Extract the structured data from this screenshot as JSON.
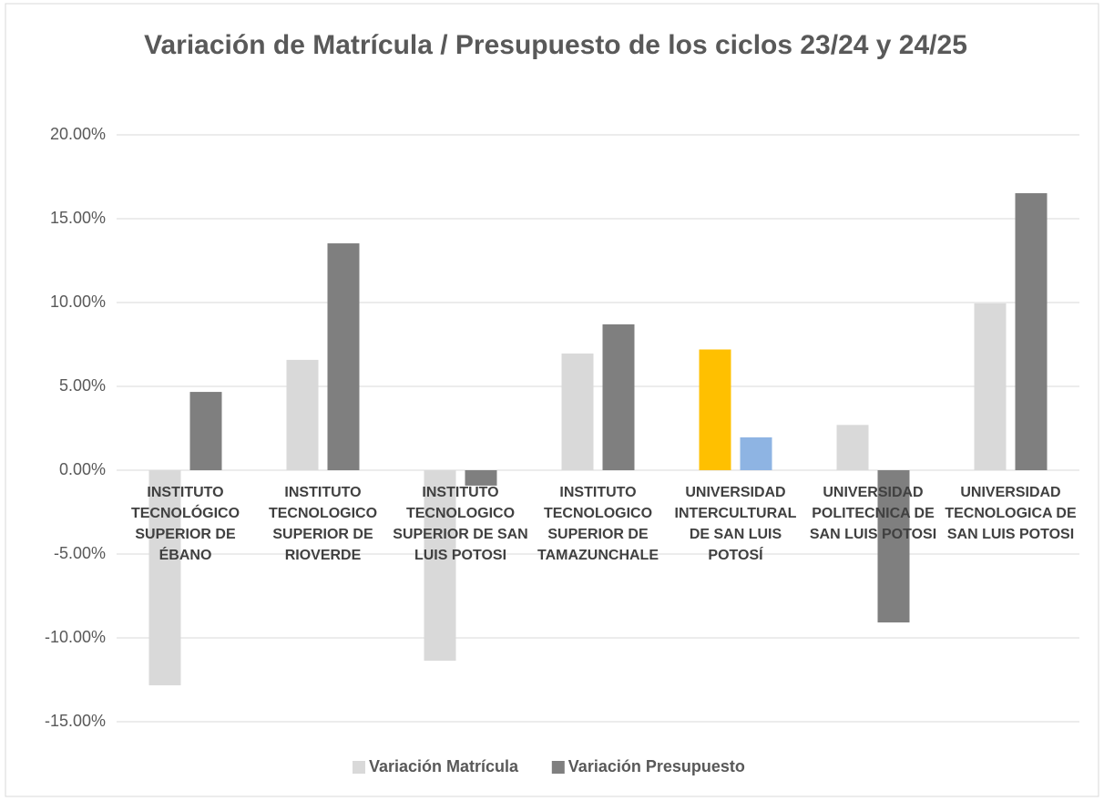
{
  "chart_data": {
    "type": "bar",
    "title": "Variación de Matrícula / Presupuesto de los ciclos 23/24 y 24/25",
    "categories": [
      "INSTITUTO TECNOLÓGICO SUPERIOR DE ÉBANO",
      "INSTITUTO TECNOLOGICO SUPERIOR DE RIOVERDE",
      "INSTITUTO TECNOLOGICO SUPERIOR DE SAN LUIS POTOSI",
      "INSTITUTO TECNOLOGICO SUPERIOR DE TAMAZUNCHALE",
      "UNIVERSIDAD INTERCULTURAL DE SAN LUIS POTOSÍ",
      "UNIVERSIDAD POLITECNICA DE SAN LUIS POTOSI",
      "UNIVERSIDAD TECNOLOGICA DE SAN LUIS POTOSI"
    ],
    "series": [
      {
        "name": "Variación Matrícula",
        "color": "#d9d9d9",
        "colors": [
          "#d9d9d9",
          "#d9d9d9",
          "#d9d9d9",
          "#d9d9d9",
          "#ffc000",
          "#d9d9d9",
          "#d9d9d9"
        ],
        "values": [
          -12.83,
          6.58,
          -11.36,
          6.96,
          7.2,
          2.7,
          9.95
        ]
      },
      {
        "name": "Variación Presupuesto",
        "color": "#7f7f7f",
        "colors": [
          "#7f7f7f",
          "#7f7f7f",
          "#7f7f7f",
          "#7f7f7f",
          "#8eb4e3",
          "#7f7f7f",
          "#7f7f7f"
        ],
        "values": [
          4.67,
          13.53,
          -0.92,
          8.7,
          1.96,
          -9.08,
          16.52
        ]
      }
    ],
    "ylim": [
      -15,
      20
    ],
    "yticks": [
      {
        "value": -15,
        "label": "-15.00%"
      },
      {
        "value": -10,
        "label": "-10.00%"
      },
      {
        "value": -5,
        "label": "-5.00%"
      },
      {
        "value": 0,
        "label": "0.00%"
      },
      {
        "value": 5,
        "label": "5.00%"
      },
      {
        "value": 10,
        "label": "10.00%"
      },
      {
        "value": 15,
        "label": "15.00%"
      },
      {
        "value": 20,
        "label": "20.00%"
      }
    ],
    "grid": true,
    "legend": "bottom"
  }
}
